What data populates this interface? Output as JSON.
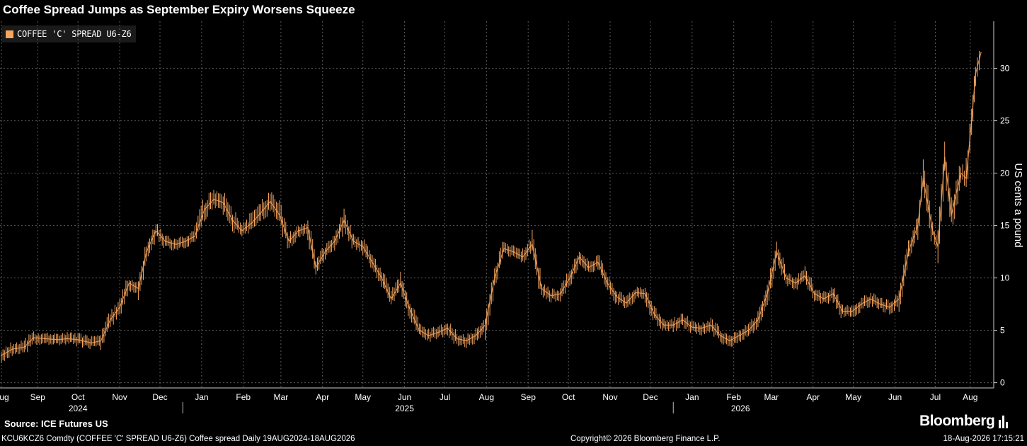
{
  "header": {
    "title": "Coffee Spread Jumps as September Expiry Worsens Squeeze"
  },
  "legend": {
    "label": "COFFEE 'C' SPREAD U6-Z6",
    "color": "#f6a55e"
  },
  "footer": {
    "source": "Source: ICE Futures US",
    "brand": "Bloomberg",
    "description": "KCU6KCZ6 Comdty (COFFEE 'C' SPREAD U6-Z6) Coffee spread Daily 19AUG2024-18AUG2026",
    "copyright": "Copyright© 2026 Bloomberg Finance L.P.",
    "timestamp": "18-Aug-2026 17:15:21"
  },
  "chart_data": {
    "type": "line",
    "title": "Coffee Spread Jumps as September Expiry Worsens Squeeze",
    "ylabel": "US cents a pound",
    "ylim": [
      -0.5,
      34.5
    ],
    "yticks": [
      0,
      5,
      10,
      15,
      20,
      25,
      30
    ],
    "grid": true,
    "legend_position": "top-left",
    "y_axis_side": "right",
    "x_range": [
      "2024-08-19",
      "2026-08-18"
    ],
    "x_month_labels": [
      {
        "label": "Aug",
        "date": "2024-08-19"
      },
      {
        "label": "Sep",
        "date": "2024-09-15"
      },
      {
        "label": "Oct",
        "date": "2024-10-15"
      },
      {
        "label": "Nov",
        "date": "2024-11-15"
      },
      {
        "label": "Dec",
        "date": "2024-12-15"
      },
      {
        "label": "Jan",
        "date": "2025-01-15"
      },
      {
        "label": "Feb",
        "date": "2025-02-15"
      },
      {
        "label": "Mar",
        "date": "2025-03-15"
      },
      {
        "label": "Apr",
        "date": "2025-04-15"
      },
      {
        "label": "May",
        "date": "2025-05-15"
      },
      {
        "label": "Jun",
        "date": "2025-06-15"
      },
      {
        "label": "Jul",
        "date": "2025-07-15"
      },
      {
        "label": "Aug",
        "date": "2025-08-15"
      },
      {
        "label": "Sep",
        "date": "2025-09-15"
      },
      {
        "label": "Oct",
        "date": "2025-10-15"
      },
      {
        "label": "Nov",
        "date": "2025-11-15"
      },
      {
        "label": "Dec",
        "date": "2025-12-15"
      },
      {
        "label": "Jan",
        "date": "2026-01-15"
      },
      {
        "label": "Feb",
        "date": "2026-02-15"
      },
      {
        "label": "Mar",
        "date": "2026-03-15"
      },
      {
        "label": "Apr",
        "date": "2026-04-15"
      },
      {
        "label": "May",
        "date": "2026-05-15"
      },
      {
        "label": "Jun",
        "date": "2026-06-15"
      },
      {
        "label": "Jul",
        "date": "2026-07-15"
      },
      {
        "label": "Aug",
        "date": "2026-08-10"
      }
    ],
    "x_year_labels": [
      {
        "label": "2024",
        "date": "2024-10-15"
      },
      {
        "label": "2025",
        "date": "2025-06-15"
      },
      {
        "label": "2026",
        "date": "2026-02-20"
      }
    ],
    "x_year_dividers": [
      "2025-01-01",
      "2026-01-01"
    ],
    "series": [
      {
        "name": "COFFEE 'C' SPREAD U6-Z6",
        "color": "#f6a55e",
        "points": [
          [
            "2024-08-19",
            2.6
          ],
          [
            "2024-08-27",
            3.2
          ],
          [
            "2024-09-05",
            3.4
          ],
          [
            "2024-09-12",
            4.3
          ],
          [
            "2024-09-20",
            4.2
          ],
          [
            "2024-09-30",
            4.1
          ],
          [
            "2024-10-07",
            4.2
          ],
          [
            "2024-10-15",
            4.1
          ],
          [
            "2024-10-25",
            3.8
          ],
          [
            "2024-11-01",
            4.0
          ],
          [
            "2024-11-08",
            6.0
          ],
          [
            "2024-11-15",
            7.2
          ],
          [
            "2024-11-22",
            9.5
          ],
          [
            "2024-11-29",
            9.0
          ],
          [
            "2024-12-05",
            12.5
          ],
          [
            "2024-12-12",
            14.5
          ],
          [
            "2024-12-19",
            13.5
          ],
          [
            "2024-12-27",
            13.2
          ],
          [
            "2025-01-03",
            13.5
          ],
          [
            "2025-01-10",
            14.0
          ],
          [
            "2025-01-17",
            16.5
          ],
          [
            "2025-01-24",
            17.5
          ],
          [
            "2025-01-31",
            17.2
          ],
          [
            "2025-02-07",
            15.5
          ],
          [
            "2025-02-14",
            14.5
          ],
          [
            "2025-02-21",
            15.2
          ],
          [
            "2025-02-28",
            16.2
          ],
          [
            "2025-03-07",
            17.3
          ],
          [
            "2025-03-14",
            16.0
          ],
          [
            "2025-03-21",
            13.5
          ],
          [
            "2025-03-28",
            14.5
          ],
          [
            "2025-04-04",
            14.8
          ],
          [
            "2025-04-10",
            11.0
          ],
          [
            "2025-04-17",
            12.5
          ],
          [
            "2025-04-24",
            13.5
          ],
          [
            "2025-05-01",
            15.5
          ],
          [
            "2025-05-08",
            13.5
          ],
          [
            "2025-05-15",
            13.0
          ],
          [
            "2025-05-22",
            11.5
          ],
          [
            "2025-05-29",
            10.0
          ],
          [
            "2025-06-05",
            8.0
          ],
          [
            "2025-06-12",
            9.5
          ],
          [
            "2025-06-19",
            7.0
          ],
          [
            "2025-06-26",
            5.0
          ],
          [
            "2025-07-03",
            4.5
          ],
          [
            "2025-07-10",
            4.8
          ],
          [
            "2025-07-17",
            5.2
          ],
          [
            "2025-07-24",
            4.2
          ],
          [
            "2025-07-31",
            4.0
          ],
          [
            "2025-08-07",
            4.5
          ],
          [
            "2025-08-14",
            5.5
          ],
          [
            "2025-08-21",
            10.0
          ],
          [
            "2025-08-28",
            12.8
          ],
          [
            "2025-09-04",
            12.5
          ],
          [
            "2025-09-11",
            12.0
          ],
          [
            "2025-09-18",
            13.2
          ],
          [
            "2025-09-25",
            9.0
          ],
          [
            "2025-10-02",
            8.3
          ],
          [
            "2025-10-09",
            8.5
          ],
          [
            "2025-10-16",
            10.0
          ],
          [
            "2025-10-23",
            12.0
          ],
          [
            "2025-10-30",
            11.0
          ],
          [
            "2025-11-06",
            11.5
          ],
          [
            "2025-11-13",
            9.5
          ],
          [
            "2025-11-20",
            8.2
          ],
          [
            "2025-11-27",
            7.6
          ],
          [
            "2025-12-04",
            8.6
          ],
          [
            "2025-12-11",
            8.5
          ],
          [
            "2025-12-18",
            6.5
          ],
          [
            "2025-12-25",
            5.5
          ],
          [
            "2026-01-01",
            5.5
          ],
          [
            "2026-01-08",
            6.0
          ],
          [
            "2026-01-15",
            5.3
          ],
          [
            "2026-01-22",
            5.2
          ],
          [
            "2026-01-29",
            5.5
          ],
          [
            "2026-02-05",
            4.5
          ],
          [
            "2026-02-12",
            4.0
          ],
          [
            "2026-02-19",
            4.5
          ],
          [
            "2026-02-26",
            5.0
          ],
          [
            "2026-03-05",
            6.0
          ],
          [
            "2026-03-12",
            8.5
          ],
          [
            "2026-03-19",
            12.5
          ],
          [
            "2026-03-26",
            10.0
          ],
          [
            "2026-04-02",
            9.5
          ],
          [
            "2026-04-09",
            10.2
          ],
          [
            "2026-04-16",
            8.5
          ],
          [
            "2026-04-23",
            8.0
          ],
          [
            "2026-04-30",
            8.5
          ],
          [
            "2026-05-07",
            6.8
          ],
          [
            "2026-05-14",
            6.8
          ],
          [
            "2026-05-21",
            7.5
          ],
          [
            "2026-05-28",
            8.0
          ],
          [
            "2026-06-04",
            7.5
          ],
          [
            "2026-06-11",
            7.2
          ],
          [
            "2026-06-18",
            8.0
          ],
          [
            "2026-06-25",
            12.5
          ],
          [
            "2026-07-02",
            15.0
          ],
          [
            "2026-07-06",
            19.5
          ],
          [
            "2026-07-13",
            14.5
          ],
          [
            "2026-07-17",
            13.0
          ],
          [
            "2026-07-22",
            21.5
          ],
          [
            "2026-07-27",
            16.0
          ],
          [
            "2026-08-03",
            20.0
          ],
          [
            "2026-08-07",
            19.5
          ],
          [
            "2026-08-11",
            25.0
          ],
          [
            "2026-08-14",
            29.5
          ],
          [
            "2026-08-18",
            31.5
          ]
        ]
      }
    ]
  }
}
